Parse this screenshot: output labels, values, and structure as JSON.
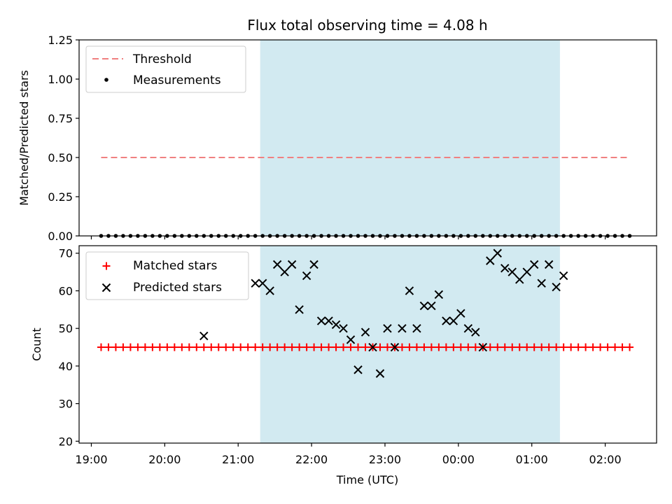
{
  "chart_data": [
    {
      "type": "scatter",
      "title": "Flux total observing time = 4.08 h",
      "ylabel": "Matched/Predicted stars",
      "xlim": [
        "18:50",
        "02:42"
      ],
      "ylim": [
        0,
        1.25
      ],
      "yticks": [
        "0.00",
        "0.25",
        "0.50",
        "0.75",
        "1.00",
        "1.25"
      ],
      "highlight_span": {
        "x0": "21:18",
        "x1": "01:23",
        "color": "#add8e6"
      },
      "legend": {
        "location": "top-left",
        "entries": [
          "Threshold",
          "Measurements"
        ]
      },
      "threshold": {
        "name": "Threshold",
        "value": 0.5,
        "x0": "19:08",
        "x1": "02:20",
        "color": "#f08080"
      },
      "series": [
        {
          "name": "Measurements",
          "color": "#000000",
          "marker": "dot",
          "x": [
            "19:08",
            "19:14",
            "19:20",
            "19:26",
            "19:32",
            "19:38",
            "19:44",
            "19:50",
            "19:56",
            "20:02",
            "20:08",
            "20:14",
            "20:20",
            "20:26",
            "20:32",
            "20:38",
            "20:44",
            "20:50",
            "20:56",
            "21:02",
            "21:08",
            "21:14",
            "21:20",
            "21:26",
            "21:32",
            "21:38",
            "21:44",
            "21:50",
            "21:56",
            "22:02",
            "22:08",
            "22:14",
            "22:20",
            "22:26",
            "22:32",
            "22:38",
            "22:44",
            "22:50",
            "22:56",
            "23:02",
            "23:08",
            "23:14",
            "23:20",
            "23:26",
            "23:32",
            "23:38",
            "23:44",
            "23:50",
            "23:56",
            "00:02",
            "00:08",
            "00:14",
            "00:20",
            "00:26",
            "00:32",
            "00:38",
            "00:44",
            "00:50",
            "00:56",
            "01:02",
            "01:08",
            "01:14",
            "01:20",
            "01:26",
            "01:32",
            "01:38",
            "01:44",
            "01:50",
            "01:56",
            "02:02",
            "02:08",
            "02:14",
            "02:20"
          ],
          "y": [
            0,
            0,
            0,
            0,
            0,
            0,
            0,
            0,
            0,
            0,
            0,
            0,
            0,
            0,
            0,
            0,
            0,
            0,
            0,
            0,
            0,
            0,
            0,
            0,
            0,
            0,
            0,
            0,
            0,
            0,
            0,
            0,
            0,
            0,
            0,
            0,
            0,
            0,
            0,
            0,
            0,
            0,
            0,
            0,
            0,
            0,
            0,
            0,
            0,
            0,
            0,
            0,
            0,
            0,
            0,
            0,
            0,
            0,
            0,
            0,
            0,
            0,
            0,
            0,
            0,
            0,
            0,
            0,
            0,
            0,
            0,
            0,
            0
          ]
        }
      ]
    },
    {
      "type": "scatter",
      "xlabel": "Time (UTC)",
      "ylabel": "Count",
      "xlim": [
        "18:50",
        "02:42"
      ],
      "ylim": [
        19.5,
        72
      ],
      "yticks": [
        "20",
        "30",
        "40",
        "50",
        "60",
        "70"
      ],
      "xticks": [
        "19:00",
        "20:00",
        "21:00",
        "22:00",
        "23:00",
        "00:00",
        "01:00",
        "02:00"
      ],
      "highlight_span": {
        "x0": "21:18",
        "x1": "01:23",
        "color": "#add8e6"
      },
      "legend": {
        "location": "top-left",
        "entries": [
          "Matched stars",
          "Predicted stars"
        ]
      },
      "series": [
        {
          "name": "Matched stars",
          "color": "#ff0000",
          "marker": "plus",
          "x": [
            "19:08",
            "19:14",
            "19:20",
            "19:26",
            "19:32",
            "19:38",
            "19:44",
            "19:50",
            "19:56",
            "20:02",
            "20:08",
            "20:14",
            "20:20",
            "20:26",
            "20:32",
            "20:38",
            "20:44",
            "20:50",
            "20:56",
            "21:02",
            "21:08",
            "21:14",
            "21:20",
            "21:26",
            "21:32",
            "21:38",
            "21:44",
            "21:50",
            "21:56",
            "22:02",
            "22:08",
            "22:14",
            "22:20",
            "22:26",
            "22:32",
            "22:38",
            "22:44",
            "22:50",
            "22:56",
            "23:02",
            "23:08",
            "23:14",
            "23:20",
            "23:26",
            "23:32",
            "23:38",
            "23:44",
            "23:50",
            "23:56",
            "00:02",
            "00:08",
            "00:14",
            "00:20",
            "00:26",
            "00:32",
            "00:38",
            "00:44",
            "00:50",
            "00:56",
            "01:02",
            "01:08",
            "01:14",
            "01:20",
            "01:26",
            "01:32",
            "01:38",
            "01:44",
            "01:50",
            "01:56",
            "02:02",
            "02:08",
            "02:14",
            "02:20"
          ],
          "y": [
            45,
            45,
            45,
            45,
            45,
            45,
            45,
            45,
            45,
            45,
            45,
            45,
            45,
            45,
            45,
            45,
            45,
            45,
            45,
            45,
            45,
            45,
            45,
            45,
            45,
            45,
            45,
            45,
            45,
            45,
            45,
            45,
            45,
            45,
            45,
            45,
            45,
            45,
            45,
            45,
            45,
            45,
            45,
            45,
            45,
            45,
            45,
            45,
            45,
            45,
            45,
            45,
            45,
            45,
            45,
            45,
            45,
            45,
            45,
            45,
            45,
            45,
            45,
            45,
            45,
            45,
            45,
            45,
            45,
            45,
            45,
            45,
            45
          ]
        },
        {
          "name": "Predicted stars",
          "color": "#000000",
          "marker": "x",
          "x": [
            "20:32",
            "21:14",
            "21:20",
            "21:26",
            "21:32",
            "21:38",
            "21:44",
            "21:50",
            "21:56",
            "22:02",
            "22:08",
            "22:14",
            "22:20",
            "22:26",
            "22:32",
            "22:38",
            "22:44",
            "22:50",
            "22:56",
            "23:02",
            "23:08",
            "23:14",
            "23:20",
            "23:26",
            "23:32",
            "23:38",
            "23:44",
            "23:50",
            "23:56",
            "00:02",
            "00:08",
            "00:14",
            "00:20",
            "00:26",
            "00:32",
            "00:38",
            "00:44",
            "00:50",
            "00:56",
            "01:02",
            "01:08",
            "01:14",
            "01:20",
            "01:26"
          ],
          "y": [
            48,
            62,
            62,
            60,
            67,
            65,
            67,
            55,
            64,
            67,
            52,
            52,
            51,
            50,
            47,
            39,
            49,
            45,
            38,
            50,
            45,
            50,
            60,
            50,
            56,
            56,
            59,
            52,
            52,
            54,
            50,
            49,
            45,
            68,
            70,
            66,
            65,
            63,
            65,
            67,
            62,
            67,
            61,
            64
          ]
        }
      ]
    }
  ]
}
